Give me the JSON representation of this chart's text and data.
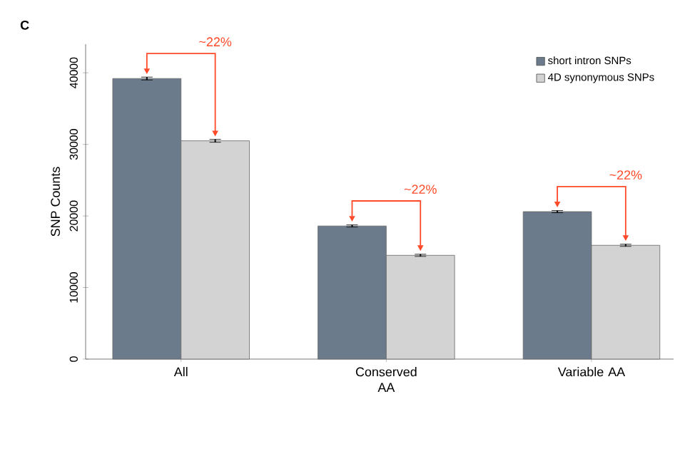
{
  "chart_data": {
    "type": "bar",
    "ylabel": "SNP Counts",
    "categories": [
      "All",
      "Conserved AA",
      "Variable AA"
    ],
    "series": [
      {
        "name": "short intron SNPs",
        "color": "#6b7b8c",
        "values": [
          39200,
          18600,
          20600
        ],
        "errors": [
          200,
          150,
          150
        ]
      },
      {
        "name": "4D synonymous SNPs",
        "color": "#d3d3d3",
        "values": [
          30500,
          14500,
          15900
        ],
        "errors": [
          200,
          150,
          150
        ]
      }
    ],
    "ylim": [
      0,
      44000
    ],
    "yticks": [
      0,
      10000,
      20000,
      30000,
      40000
    ],
    "legend": "top right",
    "grid": false,
    "annotations": [
      "C",
      "~22%",
      "~22%",
      "~22%"
    ]
  }
}
